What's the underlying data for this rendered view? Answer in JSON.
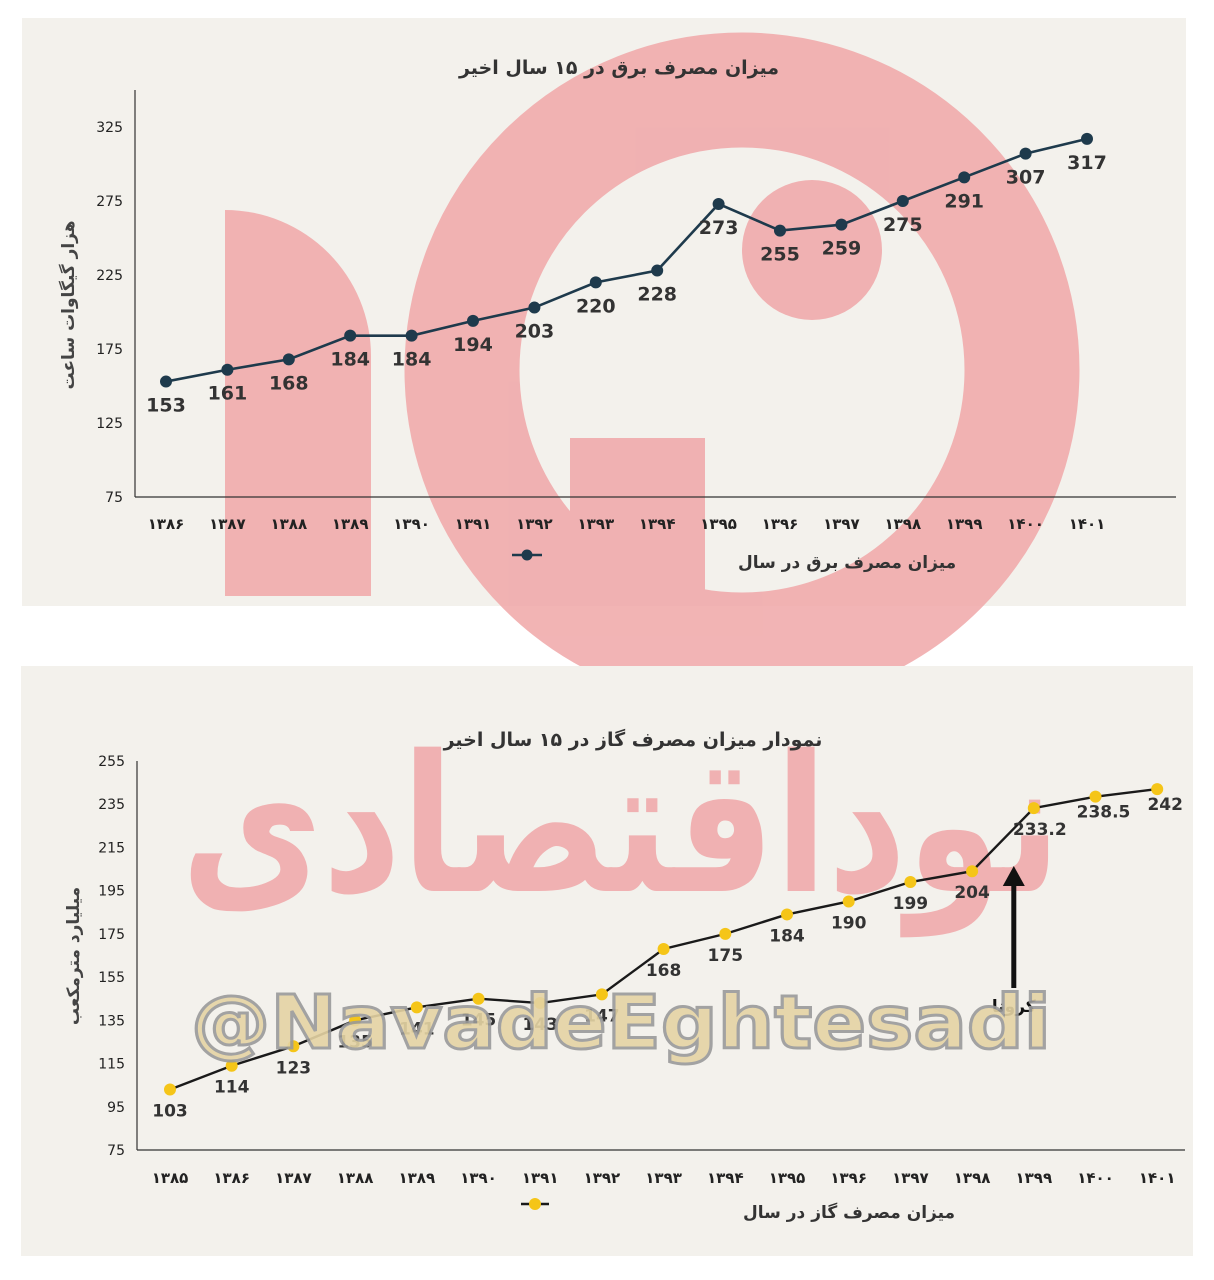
{
  "colors": {
    "electricity_line": "#1e3a4c",
    "electricity_marker": "#1e3a4c",
    "gas_line": "#1a1a1a",
    "gas_marker": "#f5c518",
    "watermark": "#f0a7a8",
    "panel_bg": "#f3f1ec"
  },
  "watermarks": {
    "brand_text": "نوداقتصادی",
    "handle": "@NavadeEghtesadi"
  },
  "chart_data": [
    {
      "type": "line",
      "title": "میزان مصرف برق در ۱۵ سال اخیر",
      "ylabel": "هزار گیگاوات ساعت",
      "xlabel": "",
      "ylim": [
        75,
        350
      ],
      "yticks": [
        75,
        125,
        175,
        225,
        275,
        325
      ],
      "categories": [
        "۱۳۸۶",
        "۱۳۸۷",
        "۱۳۸۸",
        "۱۳۸۹",
        "۱۳۹۰",
        "۱۳۹۱",
        "۱۳۹۲",
        "۱۳۹۳",
        "۱۳۹۴",
        "۱۳۹۵",
        "۱۳۹۶",
        "۱۳۹۷",
        "۱۳۹۸",
        "۱۳۹۹",
        "۱۴۰۰",
        "۱۴۰۱"
      ],
      "series": [
        {
          "name": "میزان مصرف برق در سال",
          "values": [
            153,
            161,
            168,
            184,
            184,
            194,
            203,
            220,
            228,
            273,
            255,
            259,
            275,
            291,
            307,
            317
          ],
          "labels": [
            "153",
            "161",
            "168",
            "184",
            "184",
            "194",
            "203",
            "220",
            "228",
            "273",
            "255",
            "259",
            "275",
            "291",
            "307",
            "317"
          ]
        }
      ],
      "grid": false,
      "legend": "bottom-center"
    },
    {
      "type": "line",
      "title": "نمودار میزان مصرف گاز در ۱۵ سال اخیر",
      "ylabel": "میلیارد مترمکعب",
      "xlabel": "",
      "ylim": [
        75,
        255
      ],
      "yticks": [
        75,
        95,
        115,
        135,
        155,
        175,
        195,
        215,
        235,
        255
      ],
      "categories": [
        "۱۳۸۵",
        "۱۳۸۶",
        "۱۳۸۷",
        "۱۳۸۸",
        "۱۳۸۹",
        "۱۳۹۰",
        "۱۳۹۱",
        "۱۳۹۲",
        "۱۳۹۳",
        "۱۳۹۴",
        "۱۳۹۵",
        "۱۳۹۶",
        "۱۳۹۷",
        "۱۳۹۸",
        "۱۳۹۹",
        "۱۴۰۰",
        "۱۴۰۱"
      ],
      "series": [
        {
          "name": "میزان مصرف گاز در سال",
          "values": [
            103,
            114,
            123,
            135,
            141,
            145,
            143,
            147,
            168,
            175,
            184,
            190,
            199,
            204,
            233.2,
            238.5,
            242
          ],
          "labels": [
            "103",
            "114",
            "123",
            "135",
            "141",
            "145",
            "143",
            "147",
            "168",
            "175",
            "184",
            "190",
            "199",
            "204",
            "233.2",
            "238.5",
            "242"
          ]
        }
      ],
      "annotations": [
        {
          "text": "کرونا",
          "category": "۱۳۹۹",
          "type": "arrow-up"
        }
      ],
      "grid": false,
      "legend": "bottom-center"
    }
  ]
}
